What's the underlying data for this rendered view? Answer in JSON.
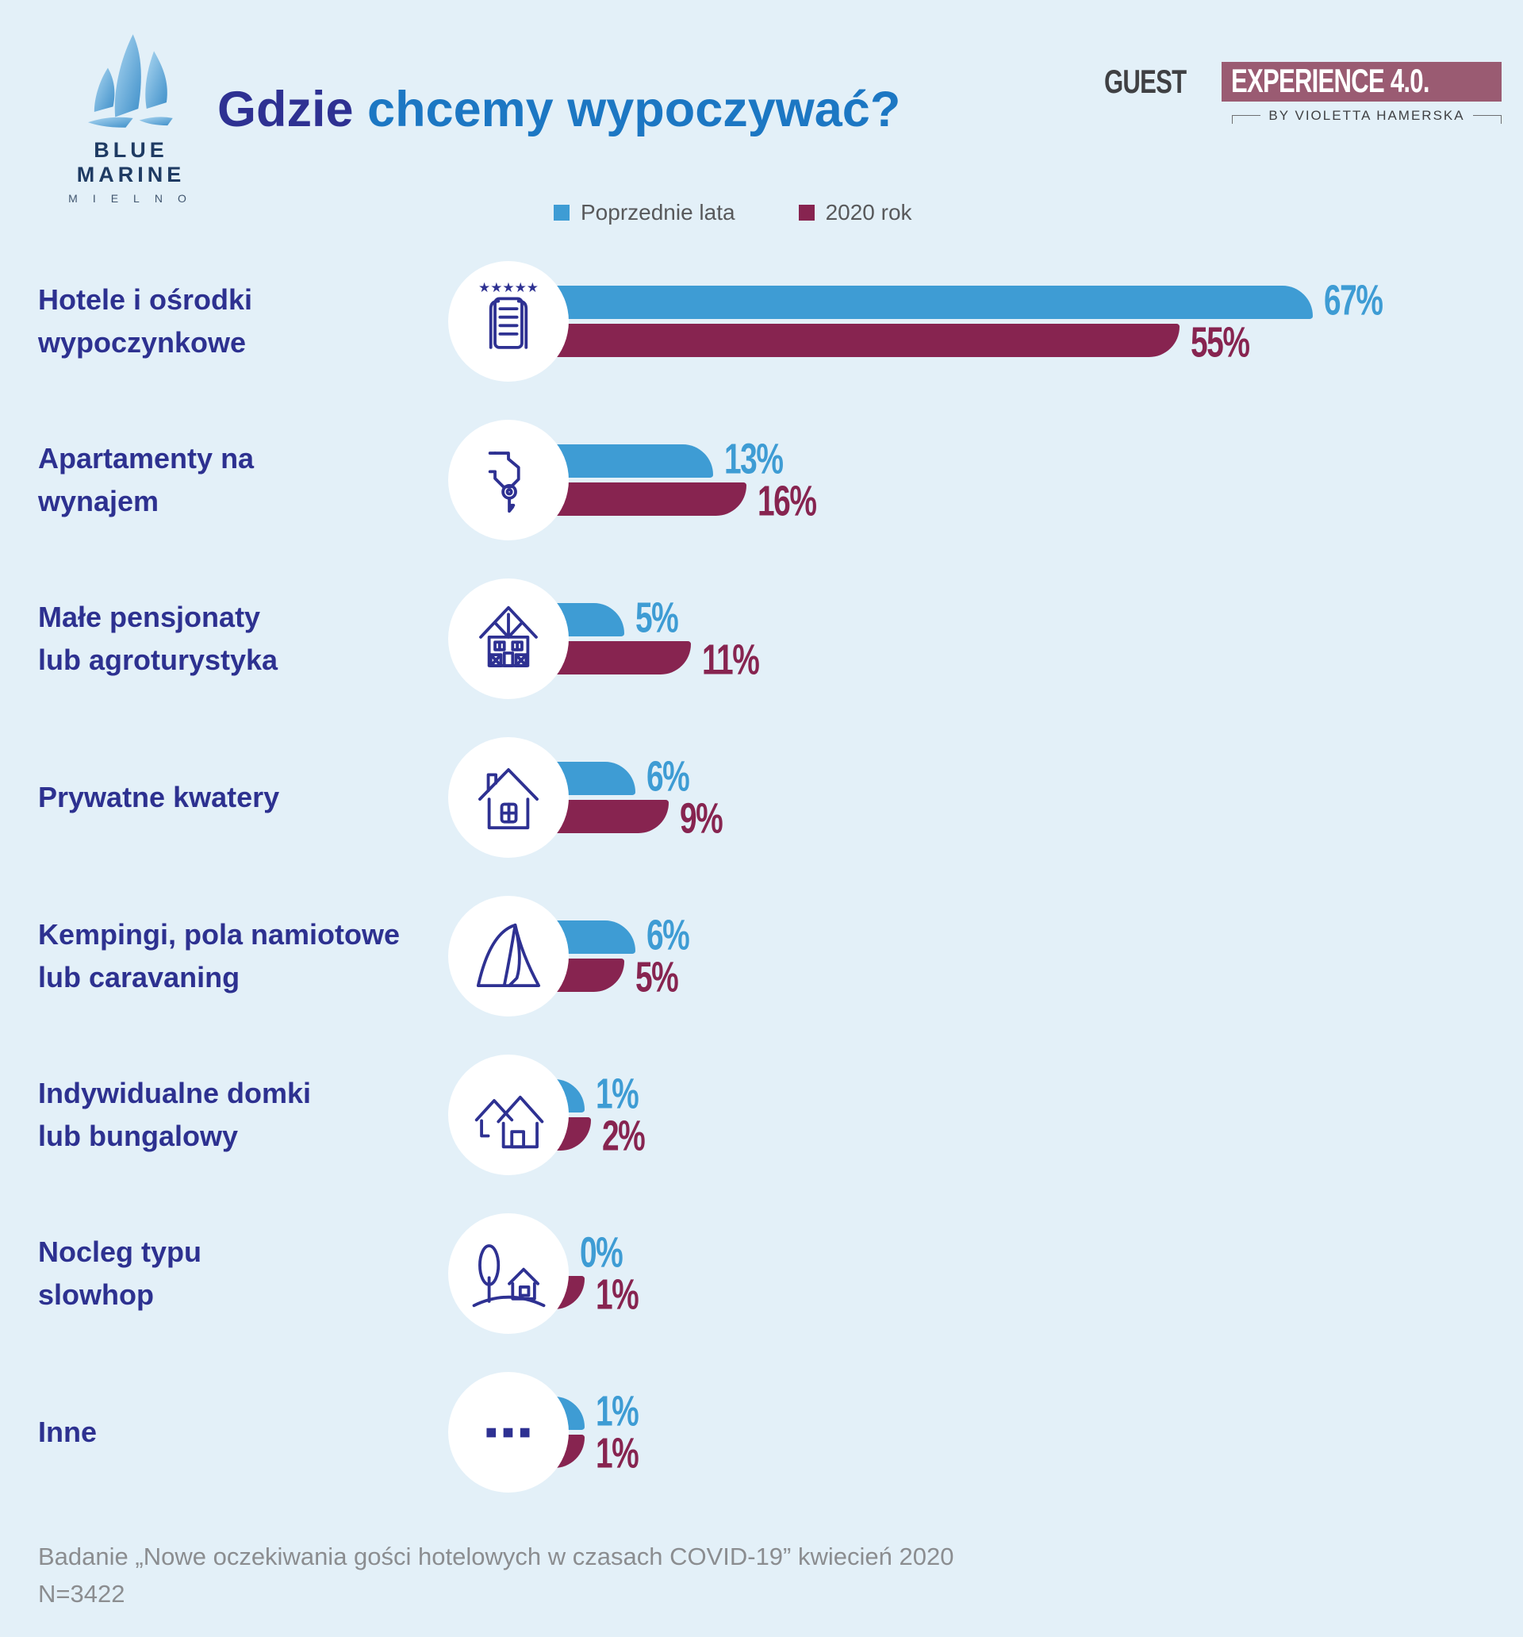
{
  "brand": {
    "name": "BLUE MARINE",
    "sub": "MIELNO"
  },
  "title": {
    "part1": "Gdzie",
    "part2": " chcemy wypoczywać?"
  },
  "badge": {
    "word1": "GUEST",
    "word2": "EXPERIENCE 4.0.",
    "byline": "BY VIOLETTA HAMERSKA"
  },
  "legend": [
    {
      "label": "Poprzednie lata",
      "color": "#3e9cd4"
    },
    {
      "label": "2020 rok",
      "color": "#872450"
    }
  ],
  "colors": {
    "background": "#e3f0f8",
    "previous_years_bar": "#3e9cd4",
    "year_2020_bar": "#872450",
    "category_text": "#2d3190",
    "title_dark": "#2e3192",
    "title_light": "#1c77c3",
    "badge_block": "#9a5b72",
    "icon_stroke": "#2e3192"
  },
  "chart_data": {
    "type": "bar",
    "orientation": "horizontal",
    "title": "Gdzie chcemy wypoczywać?",
    "unit": "%",
    "xlim": [
      0,
      70
    ],
    "grid": false,
    "legend_position": "top",
    "categories": [
      "Hotele i ośrodki wypoczynkowe",
      "Apartamenty na wynajem",
      "Małe pensjonaty lub agroturystyka",
      "Prywatne kwatery",
      "Kempingi, pola namiotowe lub caravaning",
      "Indywidualne domki lub bungalowy",
      "Nocleg typu slowhop",
      "Inne"
    ],
    "series": [
      {
        "name": "Poprzednie lata",
        "color": "#3e9cd4",
        "values": [
          67,
          13,
          5,
          6,
          6,
          1,
          0,
          1
        ]
      },
      {
        "name": "2020 rok",
        "color": "#872450",
        "values": [
          55,
          16,
          11,
          9,
          5,
          2,
          1,
          1
        ]
      }
    ]
  },
  "rows": [
    {
      "label_lines": [
        "Hotele i ośrodki",
        "wypoczynkowe"
      ],
      "icon": "hotel-stars-icon",
      "prev": 67,
      "y2020": 55
    },
    {
      "label_lines": [
        "Apartamenty na",
        "wynajem"
      ],
      "icon": "hand-key-icon",
      "prev": 13,
      "y2020": 16
    },
    {
      "label_lines": [
        "Małe pensjonaty",
        "lub agroturystyka"
      ],
      "icon": "cottage-icon",
      "prev": 5,
      "y2020": 11
    },
    {
      "label_lines": [
        "Prywatne kwatery"
      ],
      "icon": "house-icon",
      "prev": 6,
      "y2020": 9
    },
    {
      "label_lines": [
        "Kempingi, pola namiotowe",
        "lub caravaning"
      ],
      "icon": "tent-icon",
      "prev": 6,
      "y2020": 5
    },
    {
      "label_lines": [
        "Indywidualne domki",
        "lub bungalowy"
      ],
      "icon": "two-houses-icon",
      "prev": 1,
      "y2020": 2
    },
    {
      "label_lines": [
        "Nocleg typu",
        "slowhop"
      ],
      "icon": "tree-house-icon",
      "prev": 0,
      "y2020": 1
    },
    {
      "label_lines": [
        "Inne"
      ],
      "icon": "ellipsis-icon",
      "prev": 1,
      "y2020": 1
    }
  ],
  "footer": {
    "line1": "Badanie „Nowe oczekiwania gości hotelowych w czasach COVID-19” kwiecień 2020",
    "line2": "N=3422"
  }
}
